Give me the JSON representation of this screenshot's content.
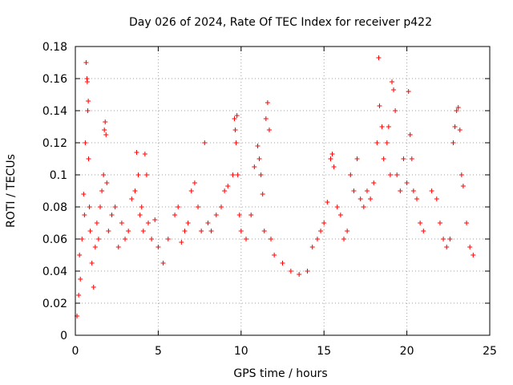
{
  "chart_data": {
    "type": "scatter",
    "title": "Day 026 of 2024, Rate Of TEC Index for receiver p422",
    "xlabel": "GPS time / hours",
    "ylabel": "ROTI / TECUs",
    "xlim": [
      0,
      25
    ],
    "ylim": [
      0,
      0.18
    ],
    "xticks": [
      0,
      5,
      10,
      15,
      20,
      25
    ],
    "xtick_labels": [
      "0",
      "5",
      "10",
      "15",
      "20",
      "25"
    ],
    "yticks": [
      0,
      0.02,
      0.04,
      0.06,
      0.08,
      0.1,
      0.12,
      0.14,
      0.16,
      0.18
    ],
    "ytick_labels": [
      "0",
      "0.02",
      "0.04",
      "0.06",
      "0.08",
      "0.1",
      "0.12",
      "0.14",
      "0.16",
      "0.18"
    ],
    "grid": true,
    "marker": "+",
    "color": "#ff0000",
    "series": [
      {
        "name": "ROTI",
        "points": [
          [
            0.1,
            0.012
          ],
          [
            0.2,
            0.025
          ],
          [
            0.25,
            0.05
          ],
          [
            0.3,
            0.035
          ],
          [
            0.4,
            0.06
          ],
          [
            0.5,
            0.088
          ],
          [
            0.55,
            0.075
          ],
          [
            0.6,
            0.12
          ],
          [
            0.65,
            0.17
          ],
          [
            0.7,
            0.16
          ],
          [
            0.72,
            0.158
          ],
          [
            0.75,
            0.14
          ],
          [
            0.78,
            0.146
          ],
          [
            0.8,
            0.11
          ],
          [
            0.85,
            0.08
          ],
          [
            0.9,
            0.065
          ],
          [
            1.0,
            0.045
          ],
          [
            1.1,
            0.03
          ],
          [
            1.2,
            0.055
          ],
          [
            1.3,
            0.07
          ],
          [
            1.4,
            0.06
          ],
          [
            1.5,
            0.08
          ],
          [
            1.6,
            0.09
          ],
          [
            1.7,
            0.1
          ],
          [
            1.75,
            0.128
          ],
          [
            1.8,
            0.133
          ],
          [
            1.85,
            0.125
          ],
          [
            1.9,
            0.095
          ],
          [
            2.0,
            0.065
          ],
          [
            2.2,
            0.075
          ],
          [
            2.4,
            0.08
          ],
          [
            2.6,
            0.055
          ],
          [
            2.8,
            0.07
          ],
          [
            3.0,
            0.06
          ],
          [
            3.2,
            0.065
          ],
          [
            3.4,
            0.085
          ],
          [
            3.6,
            0.09
          ],
          [
            3.7,
            0.114
          ],
          [
            3.8,
            0.1
          ],
          [
            3.9,
            0.075
          ],
          [
            4.0,
            0.08
          ],
          [
            4.1,
            0.065
          ],
          [
            4.2,
            0.113
          ],
          [
            4.3,
            0.1
          ],
          [
            4.4,
            0.07
          ],
          [
            4.6,
            0.06
          ],
          [
            4.8,
            0.072
          ],
          [
            5.0,
            0.055
          ],
          [
            5.3,
            0.045
          ],
          [
            5.6,
            0.06
          ],
          [
            6.0,
            0.075
          ],
          [
            6.2,
            0.08
          ],
          [
            6.4,
            0.058
          ],
          [
            6.6,
            0.065
          ],
          [
            6.8,
            0.07
          ],
          [
            7.0,
            0.09
          ],
          [
            7.2,
            0.095
          ],
          [
            7.4,
            0.08
          ],
          [
            7.6,
            0.065
          ],
          [
            7.8,
            0.12
          ],
          [
            8.0,
            0.07
          ],
          [
            8.2,
            0.065
          ],
          [
            8.5,
            0.075
          ],
          [
            8.8,
            0.08
          ],
          [
            9.0,
            0.09
          ],
          [
            9.2,
            0.093
          ],
          [
            9.5,
            0.1
          ],
          [
            9.6,
            0.135
          ],
          [
            9.65,
            0.128
          ],
          [
            9.7,
            0.12
          ],
          [
            9.75,
            0.137
          ],
          [
            9.8,
            0.1
          ],
          [
            9.9,
            0.075
          ],
          [
            10.0,
            0.065
          ],
          [
            10.3,
            0.06
          ],
          [
            10.6,
            0.075
          ],
          [
            10.8,
            0.105
          ],
          [
            11.0,
            0.118
          ],
          [
            11.1,
            0.11
          ],
          [
            11.2,
            0.1
          ],
          [
            11.3,
            0.088
          ],
          [
            11.4,
            0.065
          ],
          [
            11.5,
            0.135
          ],
          [
            11.6,
            0.145
          ],
          [
            11.7,
            0.128
          ],
          [
            11.8,
            0.06
          ],
          [
            12.0,
            0.05
          ],
          [
            12.5,
            0.045
          ],
          [
            13.0,
            0.04
          ],
          [
            13.5,
            0.038
          ],
          [
            14.0,
            0.04
          ],
          [
            14.3,
            0.055
          ],
          [
            14.6,
            0.06
          ],
          [
            14.8,
            0.065
          ],
          [
            15.0,
            0.07
          ],
          [
            15.2,
            0.083
          ],
          [
            15.4,
            0.11
          ],
          [
            15.5,
            0.113
          ],
          [
            15.6,
            0.105
          ],
          [
            15.8,
            0.08
          ],
          [
            16.0,
            0.075
          ],
          [
            16.2,
            0.06
          ],
          [
            16.4,
            0.065
          ],
          [
            16.6,
            0.1
          ],
          [
            16.8,
            0.09
          ],
          [
            17.0,
            0.11
          ],
          [
            17.2,
            0.085
          ],
          [
            17.4,
            0.08
          ],
          [
            17.6,
            0.09
          ],
          [
            17.8,
            0.085
          ],
          [
            18.0,
            0.095
          ],
          [
            18.2,
            0.12
          ],
          [
            18.3,
            0.173
          ],
          [
            18.35,
            0.143
          ],
          [
            18.5,
            0.13
          ],
          [
            18.6,
            0.11
          ],
          [
            18.8,
            0.12
          ],
          [
            18.9,
            0.13
          ],
          [
            19.0,
            0.1
          ],
          [
            19.1,
            0.158
          ],
          [
            19.2,
            0.153
          ],
          [
            19.3,
            0.14
          ],
          [
            19.4,
            0.1
          ],
          [
            19.6,
            0.09
          ],
          [
            19.8,
            0.11
          ],
          [
            20.0,
            0.095
          ],
          [
            20.1,
            0.152
          ],
          [
            20.2,
            0.125
          ],
          [
            20.3,
            0.11
          ],
          [
            20.4,
            0.09
          ],
          [
            20.6,
            0.085
          ],
          [
            20.8,
            0.07
          ],
          [
            21.0,
            0.065
          ],
          [
            21.5,
            0.09
          ],
          [
            21.8,
            0.085
          ],
          [
            22.0,
            0.07
          ],
          [
            22.2,
            0.06
          ],
          [
            22.4,
            0.055
          ],
          [
            22.6,
            0.06
          ],
          [
            22.8,
            0.12
          ],
          [
            22.9,
            0.13
          ],
          [
            23.0,
            0.14
          ],
          [
            23.1,
            0.142
          ],
          [
            23.2,
            0.128
          ],
          [
            23.3,
            0.1
          ],
          [
            23.4,
            0.093
          ],
          [
            23.6,
            0.07
          ],
          [
            23.8,
            0.055
          ],
          [
            24.0,
            0.05
          ]
        ]
      }
    ]
  }
}
